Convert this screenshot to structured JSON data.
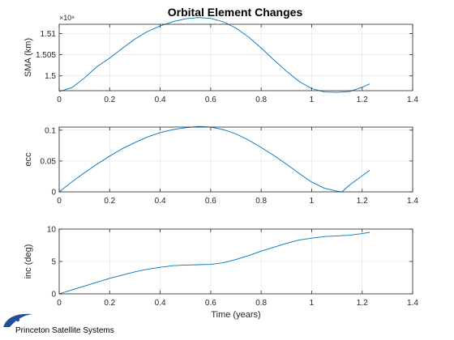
{
  "title": "Orbital Element Changes",
  "logo": {
    "text": "Princeton Satellite Systems"
  },
  "style": {
    "line_color": "#0072bd"
  },
  "chart_data": [
    {
      "type": "line",
      "xlabel": "",
      "ylabel": "SMA (km)",
      "xlim": [
        0,
        1.4
      ],
      "ylim": [
        149650000.0,
        151220000.0
      ],
      "grid": true,
      "xticks": [
        0,
        0.2,
        0.4,
        0.6,
        0.8,
        1,
        1.2,
        1.4
      ],
      "xtick_labels": [
        "0",
        "0.2",
        "0.4",
        "0.6",
        "0.8",
        "1",
        "1.2",
        "1.4"
      ],
      "yticks": [
        150000000.0,
        150500000.0,
        151000000.0
      ],
      "ytick_labels": [
        "1.5",
        "1.505",
        "1.51"
      ],
      "y_exponent_label": "×10⁸",
      "x": [
        0,
        0.05,
        0.1,
        0.15,
        0.2,
        0.25,
        0.3,
        0.35,
        0.4,
        0.45,
        0.5,
        0.55,
        0.6,
        0.65,
        0.7,
        0.75,
        0.8,
        0.85,
        0.9,
        0.95,
        1.0,
        1.05,
        1.1,
        1.15,
        1.2,
        1.23
      ],
      "y": [
        149630000.0,
        149720000.0,
        149950000.0,
        150220000.0,
        150420000.0,
        150650000.0,
        150870000.0,
        151050000.0,
        151180000.0,
        151280000.0,
        151350000.0,
        151380000.0,
        151360000.0,
        151280000.0,
        151130000.0,
        150920000.0,
        150660000.0,
        150380000.0,
        150110000.0,
        149870000.0,
        149700000.0,
        149620000.0,
        149610000.0,
        149630000.0,
        149730000.0,
        149810000.0
      ]
    },
    {
      "type": "line",
      "xlabel": "",
      "ylabel": "ecc",
      "xlim": [
        0,
        1.4
      ],
      "ylim": [
        0,
        0.105
      ],
      "grid": true,
      "xticks": [
        0,
        0.2,
        0.4,
        0.6,
        0.8,
        1,
        1.2,
        1.4
      ],
      "xtick_labels": [
        "0",
        "0.2",
        "0.4",
        "0.6",
        "0.8",
        "1",
        "1.2",
        "1.4"
      ],
      "yticks": [
        0,
        0.05,
        0.1
      ],
      "ytick_labels": [
        "0",
        "0.05",
        "0.1"
      ],
      "x": [
        0,
        0.05,
        0.1,
        0.15,
        0.2,
        0.25,
        0.3,
        0.35,
        0.4,
        0.45,
        0.5,
        0.55,
        0.6,
        0.65,
        0.7,
        0.75,
        0.8,
        0.85,
        0.9,
        0.95,
        1.0,
        1.05,
        1.1,
        1.12,
        1.15,
        1.2,
        1.23
      ],
      "y": [
        0,
        0.016,
        0.031,
        0.045,
        0.058,
        0.07,
        0.08,
        0.089,
        0.096,
        0.101,
        0.104,
        0.106,
        0.105,
        0.101,
        0.094,
        0.084,
        0.072,
        0.059,
        0.045,
        0.03,
        0.016,
        0.006,
        0.001,
        0,
        0.011,
        0.026,
        0.035
      ]
    },
    {
      "type": "line",
      "xlabel": "Time (years)",
      "ylabel": "inc (deg)",
      "xlim": [
        0,
        1.4
      ],
      "ylim": [
        0,
        10
      ],
      "grid": true,
      "xticks": [
        0,
        0.2,
        0.4,
        0.6,
        0.8,
        1,
        1.2,
        1.4
      ],
      "xtick_labels": [
        "0",
        "0.2",
        "0.4",
        "0.6",
        "0.8",
        "1",
        "1.2",
        "1.4"
      ],
      "yticks": [
        0,
        5,
        10
      ],
      "ytick_labels": [
        "0",
        "5",
        "10"
      ],
      "x": [
        0,
        0.05,
        0.1,
        0.15,
        0.2,
        0.25,
        0.3,
        0.35,
        0.4,
        0.45,
        0.5,
        0.55,
        0.6,
        0.65,
        0.7,
        0.75,
        0.8,
        0.85,
        0.9,
        0.95,
        1.0,
        1.05,
        1.1,
        1.15,
        1.2,
        1.23
      ],
      "y": [
        0,
        0.6,
        1.2,
        1.8,
        2.4,
        2.9,
        3.4,
        3.8,
        4.1,
        4.35,
        4.45,
        4.5,
        4.55,
        4.8,
        5.3,
        5.9,
        6.6,
        7.2,
        7.8,
        8.3,
        8.6,
        8.85,
        8.95,
        9.05,
        9.3,
        9.5
      ]
    }
  ]
}
